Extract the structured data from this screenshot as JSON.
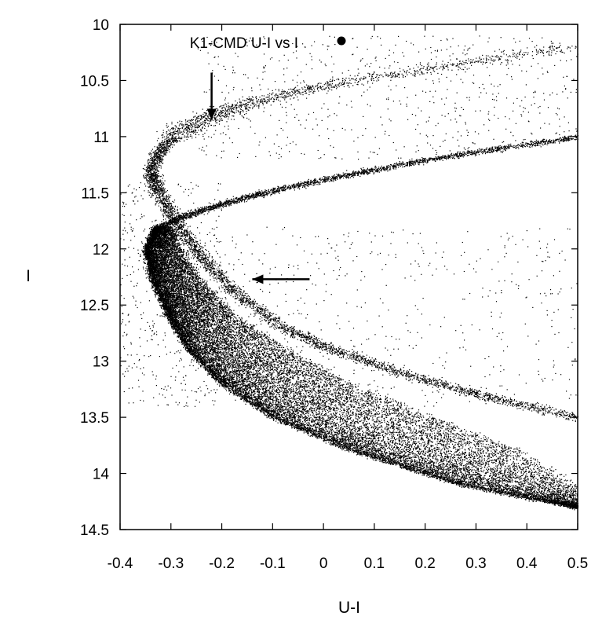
{
  "chart_data": {
    "type": "scatter",
    "title": "",
    "xlabel": "U-I",
    "ylabel": "I",
    "xlim": [
      -0.4,
      0.5
    ],
    "ylim": [
      14.5,
      10
    ],
    "y_inverted": true,
    "xticks": [
      "-0.4",
      "-0.3",
      "-0.2",
      "-0.1",
      "0",
      "0.1",
      "0.2",
      "0.3",
      "0.4",
      "0.5"
    ],
    "yticks": [
      "10",
      "10.5",
      "11",
      "11.5",
      "12",
      "12.5",
      "13",
      "13.5",
      "14",
      "14.5"
    ],
    "grid": false,
    "legend": {
      "entries": [
        "K1-CMD U-I vs I"
      ],
      "placement": "top-left",
      "marker": "filled-circle"
    },
    "series": [
      {
        "name": "K1-CMD U-I vs I",
        "marker_color": "#000000",
        "components": [
          {
            "kind": "main-sequence-band (dense, wide)",
            "ridge": {
              "y": [
                11.8,
                12.0,
                12.3,
                12.6,
                12.9,
                13.2,
                13.5,
                13.8,
                14.1,
                14.3
              ],
              "x": [
                -0.33,
                -0.345,
                -0.325,
                -0.29,
                -0.24,
                -0.16,
                -0.04,
                0.13,
                0.34,
                0.5
              ]
            },
            "blue_edge": {
              "y": [
                11.8,
                12.0,
                12.3,
                12.6,
                12.9,
                13.2,
                13.5,
                13.8,
                14.1,
                14.3
              ],
              "x": [
                -0.33,
                -0.35,
                -0.335,
                -0.305,
                -0.265,
                -0.2,
                -0.1,
                0.06,
                0.27,
                0.5
              ]
            },
            "red_edge": {
              "y": [
                11.8,
                12.0,
                12.3,
                12.6,
                12.9,
                13.2,
                13.5,
                13.8,
                14.1,
                14.3
              ],
              "x": [
                -0.3,
                -0.28,
                -0.235,
                -0.17,
                -0.07,
                0.06,
                0.22,
                0.39,
                0.5,
                0.5
              ]
            }
          },
          {
            "kind": "thin sequence (lower-right to upper-left, arrow at I~12.25)",
            "ridge": {
              "y": [
                13.5,
                13.3,
                13.1,
                12.9,
                12.7,
                12.4,
                12.1,
                11.8,
                11.5,
                11.3,
                11.1,
                10.9,
                10.7,
                10.5,
                10.2
              ],
              "x": [
                0.5,
                0.31,
                0.15,
                0.02,
                -0.08,
                -0.17,
                -0.235,
                -0.285,
                -0.325,
                -0.34,
                -0.32,
                -0.265,
                -0.15,
                0.05,
                0.48
              ]
            }
          },
          {
            "kind": "upper sequence (arc from I~11.8 to I~11.0)",
            "ridge": {
              "y": [
                11.8,
                11.7,
                11.6,
                11.5,
                11.4,
                11.3,
                11.2,
                11.1,
                11.0
              ],
              "x": [
                -0.32,
                -0.27,
                -0.2,
                -0.12,
                -0.02,
                0.09,
                0.21,
                0.35,
                0.5
              ]
            }
          },
          {
            "kind": "scattered field points (upper right)",
            "approx_points": [
              [
                0.1,
                10.8
              ],
              [
                0.2,
                10.6
              ],
              [
                0.35,
                10.5
              ],
              [
                0.45,
                10.3
              ],
              [
                0.0,
                11.0
              ],
              [
                0.25,
                10.9
              ],
              [
                0.4,
                10.9
              ],
              [
                0.15,
                10.7
              ]
            ]
          }
        ]
      }
    ],
    "annotations": [
      {
        "type": "arrow",
        "direction": "down",
        "points_to": [
          -0.22,
          10.85
        ]
      },
      {
        "type": "arrow",
        "direction": "left",
        "points_to": [
          -0.14,
          12.27
        ]
      }
    ]
  }
}
